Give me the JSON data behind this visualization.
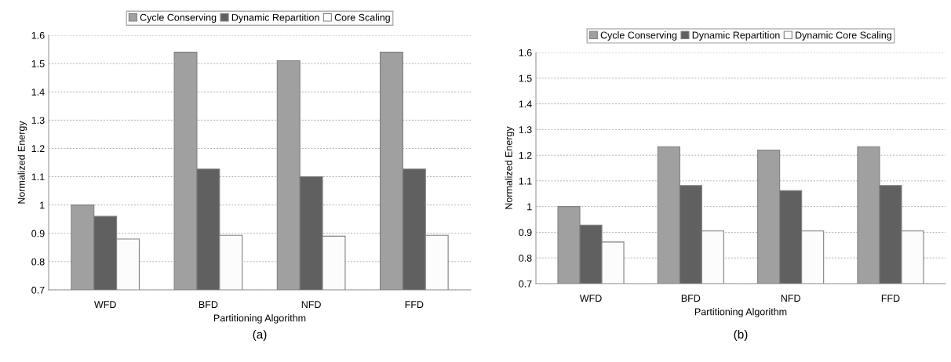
{
  "chart_data": [
    {
      "type": "bar",
      "categories": [
        "WFD",
        "BFD",
        "NFD",
        "FFD"
      ],
      "xlabel": "Partitioning Algorithm",
      "ylabel": "Normalized Energy",
      "ylim": [
        0.7,
        1.6
      ],
      "yticks": [
        0.7,
        0.8,
        0.9,
        1,
        1.1,
        1.2,
        1.3,
        1.4,
        1.5,
        1.6
      ],
      "grid": "y",
      "legend": "top",
      "annotations": [
        "(a)"
      ],
      "series": [
        {
          "name": "Cycle Conserving",
          "color": "#a0a0a0",
          "values": [
            1.0,
            1.54,
            1.51,
            1.54
          ]
        },
        {
          "name": "Dynamic Repartition",
          "color": "#606060",
          "values": [
            0.96,
            1.127,
            1.1,
            1.127
          ]
        },
        {
          "name": "Core Scaling",
          "color": "#fcfcfc",
          "values": [
            0.88,
            0.893,
            0.89,
            0.893
          ]
        }
      ]
    },
    {
      "type": "bar",
      "categories": [
        "WFD",
        "BFD",
        "NFD",
        "FFD"
      ],
      "xlabel": "Partitioning Algorithm",
      "ylabel": "Normalized Energy",
      "ylim": [
        0.7,
        1.6
      ],
      "yticks": [
        0.7,
        0.8,
        0.9,
        1,
        1.1,
        1.2,
        1.3,
        1.4,
        1.5,
        1.6
      ],
      "grid": "y",
      "legend": "top",
      "annotations": [
        "(b)"
      ],
      "series": [
        {
          "name": "Cycle Conserving",
          "color": "#a0a0a0",
          "values": [
            1.0,
            1.233,
            1.22,
            1.233
          ]
        },
        {
          "name": "Dynamic Repartition",
          "color": "#606060",
          "values": [
            0.928,
            1.082,
            1.062,
            1.082
          ]
        },
        {
          "name": "Dynamic Core Scaling",
          "color": "#fcfcfc",
          "values": [
            0.862,
            0.905,
            0.905,
            0.905
          ]
        }
      ]
    }
  ]
}
